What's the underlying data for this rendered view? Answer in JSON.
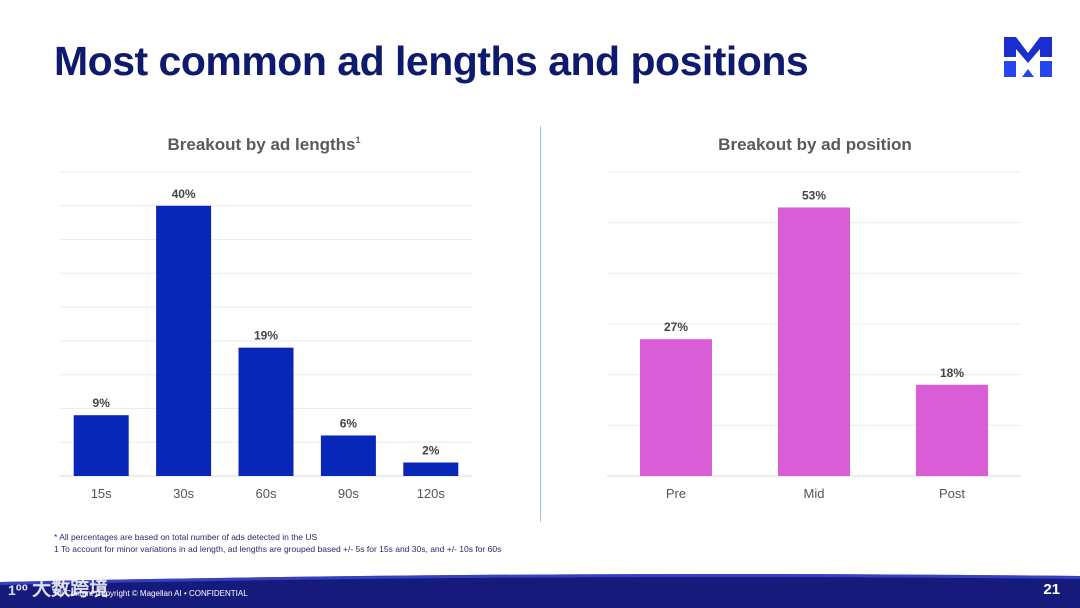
{
  "page": {
    "title": "Most common ad lengths and positions",
    "page_number": "21",
    "footer_text": "All Content Copyright © Magellan AI • CONFIDENTIAL",
    "footnotes": [
      "* All percentages are based on total number of ads detected in the US",
      "1 To account for minor variations in ad length, ad lengths are grouped based +/- 5s for 15s and 30s, and +/- 10s for 60s"
    ],
    "watermark": "大数跨境",
    "watermark_icon": "1⁰⁰",
    "logo": "magellan-m-logo"
  },
  "colors": {
    "title": "#0e1a6e",
    "lengths_bars": "#0827b8",
    "position_bars": "#d95dd4",
    "footer_band": "#161a7a"
  },
  "chart_data": [
    {
      "type": "bar",
      "title": "Breakout by ad lengths",
      "title_superscript": "1",
      "categories": [
        "15s",
        "30s",
        "60s",
        "90s",
        "120s"
      ],
      "values": [
        9,
        40,
        19,
        6,
        2
      ],
      "value_labels": [
        "9%",
        "40%",
        "19%",
        "6%",
        "2%"
      ],
      "ylim": [
        0,
        45
      ],
      "grid": true,
      "color": "#0827b8"
    },
    {
      "type": "bar",
      "title": "Breakout by ad position",
      "categories": [
        "Pre",
        "Mid",
        "Post"
      ],
      "values": [
        27,
        53,
        18
      ],
      "value_labels": [
        "27%",
        "53%",
        "18%"
      ],
      "ylim": [
        0,
        60
      ],
      "grid": true,
      "color": "#d95dd4"
    }
  ]
}
